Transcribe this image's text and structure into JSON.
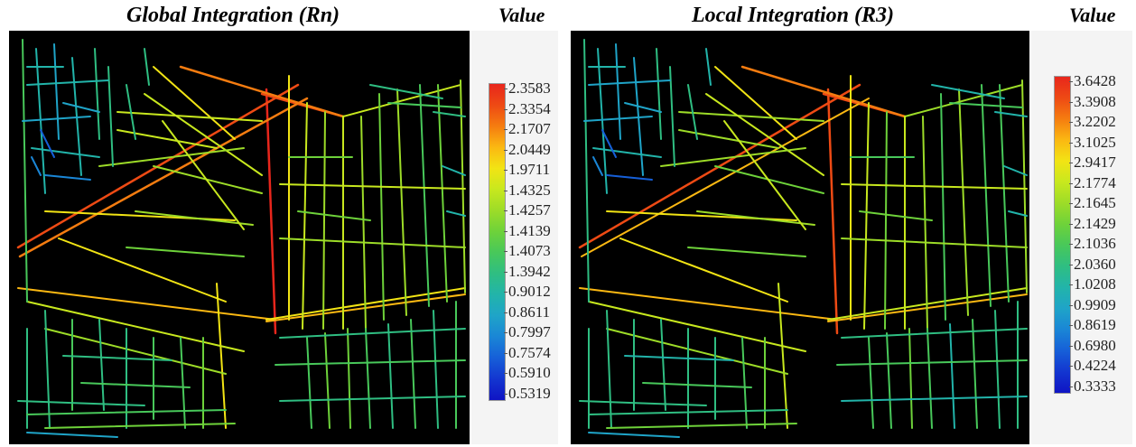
{
  "panels": [
    {
      "title": "Global Integration (Rn)",
      "legend_title": "Value",
      "legend_values": [
        "2.3583",
        "2.3354",
        "2.1707",
        "2.0449",
        "1.9711",
        "1.4325",
        "1.4257",
        "1.4139",
        "1.4073",
        "1.3942",
        "0.9012",
        "0.8611",
        "0.7997",
        "0.7574",
        "0.5910",
        "0.5319"
      ]
    },
    {
      "title": "Local Integration (R3)",
      "legend_title": "Value",
      "legend_values": [
        "3.6428",
        "3.3908",
        "3.2202",
        "3.1025",
        "2.9417",
        "2.1774",
        "2.1645",
        "2.1429",
        "2.1036",
        "2.0360",
        "1.0208",
        "0.9909",
        "0.8619",
        "0.6980",
        "0.4224",
        "0.3333"
      ]
    }
  ],
  "legend_colors": [
    "#e8261c",
    "#ee4a14",
    "#f57c10",
    "#fbb812",
    "#f2e414",
    "#c8e81e",
    "#9ddc28",
    "#6ed23a",
    "#48c85a",
    "#2fbe82",
    "#22b4aa",
    "#1fa4c8",
    "#1a86d6",
    "#165fd8",
    "#1336d0",
    "#0f14c4"
  ]
}
